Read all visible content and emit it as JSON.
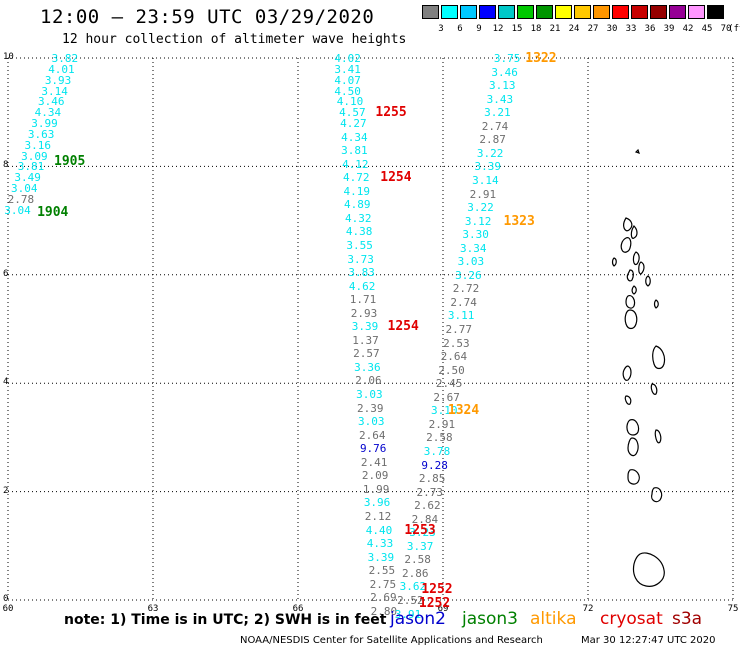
{
  "header": {
    "title": "12:00 – 23:59 UTC 03/29/2020",
    "subtitle": "12 hour collection of altimeter wave heights"
  },
  "legend": {
    "unit": "(ft)",
    "bins": [
      {
        "label": "3",
        "color": "#808080"
      },
      {
        "label": "6",
        "color": "#00ffff"
      },
      {
        "label": "9",
        "color": "#00c8ff"
      },
      {
        "label": "12",
        "color": "#0000ff"
      },
      {
        "label": "15",
        "color": "#00c8c8"
      },
      {
        "label": "18",
        "color": "#00c800"
      },
      {
        "label": "21",
        "color": "#009600"
      },
      {
        "label": "24",
        "color": "#ffff00"
      },
      {
        "label": "27",
        "color": "#ffc800"
      },
      {
        "label": "30",
        "color": "#ff9600"
      },
      {
        "label": "33",
        "color": "#ff0000"
      },
      {
        "label": "36",
        "color": "#c80000"
      },
      {
        "label": "39",
        "color": "#960000"
      },
      {
        "label": "42",
        "color": "#960096"
      },
      {
        "label": "45",
        "color": "#ff96ff"
      },
      {
        "label": "70",
        "color": "#000000"
      }
    ]
  },
  "axes": {
    "x_ticks": [
      {
        "label": "60",
        "lon": 60
      },
      {
        "label": "63",
        "lon": 63
      },
      {
        "label": "66",
        "lon": 66
      },
      {
        "label": "69",
        "lon": 69
      },
      {
        "label": "72",
        "lon": 72
      },
      {
        "label": "75",
        "lon": 75
      }
    ],
    "y_ticks": [
      {
        "label": "0",
        "lat": 0
      },
      {
        "label": "2",
        "lat": 2
      },
      {
        "label": "4",
        "lat": 4
      },
      {
        "label": "6",
        "lat": 6
      },
      {
        "label": "8",
        "lat": 8
      },
      {
        "label": "10",
        "lat": 10
      }
    ],
    "lon_range": [
      60,
      75
    ],
    "lat_range": [
      0,
      10
    ],
    "grid": true
  },
  "colors": {
    "gray": "#6e6e6e",
    "cyan": "#00e5ee",
    "blue": "#0000cd",
    "green": "#008000",
    "orange": "#ff9900",
    "red": "#e00000"
  },
  "observations": [
    {
      "v": "3.82",
      "c": "cyan",
      "lon": 61.15,
      "lat": 10.0
    },
    {
      "v": "4.01",
      "c": "cyan",
      "lon": 61.08,
      "lat": 9.8
    },
    {
      "v": "3.93",
      "c": "cyan",
      "lon": 61.01,
      "lat": 9.6
    },
    {
      "v": "3.14",
      "c": "cyan",
      "lon": 60.94,
      "lat": 9.4
    },
    {
      "v": "3.46",
      "c": "cyan",
      "lon": 60.87,
      "lat": 9.2
    },
    {
      "v": "4.34",
      "c": "cyan",
      "lon": 60.8,
      "lat": 9.0
    },
    {
      "v": "3.99",
      "c": "cyan",
      "lon": 60.73,
      "lat": 8.8
    },
    {
      "v": "3.63",
      "c": "cyan",
      "lon": 60.66,
      "lat": 8.6
    },
    {
      "v": "3.16",
      "c": "cyan",
      "lon": 60.59,
      "lat": 8.4
    },
    {
      "v": "3.09",
      "c": "cyan",
      "lon": 60.52,
      "lat": 8.2
    },
    {
      "v": "3.81",
      "c": "cyan",
      "lon": 60.45,
      "lat": 8.0
    },
    {
      "v": "3.49",
      "c": "cyan",
      "lon": 60.38,
      "lat": 7.8
    },
    {
      "v": "3.04",
      "c": "cyan",
      "lon": 60.31,
      "lat": 7.6
    },
    {
      "v": "2.78",
      "c": "gray",
      "lon": 60.24,
      "lat": 7.4
    },
    {
      "v": "3.04",
      "c": "cyan",
      "lon": 60.17,
      "lat": 7.2
    },
    {
      "v": "4.02",
      "c": "cyan",
      "lon": 67.0,
      "lat": 10.0
    },
    {
      "v": "3.41",
      "c": "cyan",
      "lon": 67.0,
      "lat": 9.8
    },
    {
      "v": "4.07",
      "c": "cyan",
      "lon": 67.0,
      "lat": 9.6
    },
    {
      "v": "4.50",
      "c": "cyan",
      "lon": 67.0,
      "lat": 9.4
    },
    {
      "v": "4.10",
      "c": "cyan",
      "lon": 67.05,
      "lat": 9.2
    },
    {
      "v": "4.57",
      "c": "cyan",
      "lon": 67.1,
      "lat": 9.0
    },
    {
      "v": "4.27",
      "c": "cyan",
      "lon": 67.12,
      "lat": 8.8
    },
    {
      "v": "4.34",
      "c": "cyan",
      "lon": 67.14,
      "lat": 8.55
    },
    {
      "v": "3.81",
      "c": "cyan",
      "lon": 67.14,
      "lat": 8.3
    },
    {
      "v": "4.12",
      "c": "cyan",
      "lon": 67.16,
      "lat": 8.05
    },
    {
      "v": "4.72",
      "c": "cyan",
      "lon": 67.18,
      "lat": 7.8
    },
    {
      "v": "4.19",
      "c": "cyan",
      "lon": 67.19,
      "lat": 7.55
    },
    {
      "v": "4.89",
      "c": "cyan",
      "lon": 67.2,
      "lat": 7.3
    },
    {
      "v": "4.32",
      "c": "cyan",
      "lon": 67.22,
      "lat": 7.05
    },
    {
      "v": "4.38",
      "c": "cyan",
      "lon": 67.24,
      "lat": 6.8
    },
    {
      "v": "3.55",
      "c": "cyan",
      "lon": 67.25,
      "lat": 6.55
    },
    {
      "v": "3.73",
      "c": "cyan",
      "lon": 67.27,
      "lat": 6.3
    },
    {
      "v": "3.83",
      "c": "cyan",
      "lon": 67.29,
      "lat": 6.05
    },
    {
      "v": "4.62",
      "c": "cyan",
      "lon": 67.3,
      "lat": 5.8
    },
    {
      "v": "1.71",
      "c": "gray",
      "lon": 67.32,
      "lat": 5.55
    },
    {
      "v": "2.93",
      "c": "gray",
      "lon": 67.34,
      "lat": 5.3
    },
    {
      "v": "3.39",
      "c": "cyan",
      "lon": 67.36,
      "lat": 5.05
    },
    {
      "v": "1.37",
      "c": "gray",
      "lon": 67.37,
      "lat": 4.8
    },
    {
      "v": "2.57",
      "c": "gray",
      "lon": 67.39,
      "lat": 4.55
    },
    {
      "v": "3.36",
      "c": "cyan",
      "lon": 67.41,
      "lat": 4.3
    },
    {
      "v": "2.06",
      "c": "gray",
      "lon": 67.43,
      "lat": 4.05
    },
    {
      "v": "3.03",
      "c": "cyan",
      "lon": 67.45,
      "lat": 3.8
    },
    {
      "v": "2.39",
      "c": "gray",
      "lon": 67.47,
      "lat": 3.55
    },
    {
      "v": "3.03",
      "c": "cyan",
      "lon": 67.49,
      "lat": 3.3
    },
    {
      "v": "2.64",
      "c": "gray",
      "lon": 67.51,
      "lat": 3.05
    },
    {
      "v": "9.76",
      "c": "blue",
      "lon": 67.53,
      "lat": 2.8
    },
    {
      "v": "2.41",
      "c": "gray",
      "lon": 67.55,
      "lat": 2.55
    },
    {
      "v": "2.09",
      "c": "gray",
      "lon": 67.57,
      "lat": 2.3
    },
    {
      "v": "1.99",
      "c": "gray",
      "lon": 67.59,
      "lat": 2.05
    },
    {
      "v": "3.96",
      "c": "cyan",
      "lon": 67.61,
      "lat": 1.8
    },
    {
      "v": "2.12",
      "c": "gray",
      "lon": 67.63,
      "lat": 1.55
    },
    {
      "v": "4.40",
      "c": "cyan",
      "lon": 67.65,
      "lat": 1.3
    },
    {
      "v": "4.33",
      "c": "cyan",
      "lon": 67.67,
      "lat": 1.05
    },
    {
      "v": "3.39",
      "c": "cyan",
      "lon": 67.69,
      "lat": 0.8
    },
    {
      "v": "2.55",
      "c": "gray",
      "lon": 67.71,
      "lat": 0.55
    },
    {
      "v": "2.75",
      "c": "gray",
      "lon": 67.73,
      "lat": 0.3
    },
    {
      "v": "2.69",
      "c": "gray",
      "lon": 67.74,
      "lat": 0.05
    },
    {
      "v": "2.80",
      "c": "gray",
      "lon": 67.75,
      "lat": -0.2
    },
    {
      "v": "3.75",
      "c": "cyan",
      "lon": 70.3,
      "lat": 10.0
    },
    {
      "v": "3.46",
      "c": "cyan",
      "lon": 70.25,
      "lat": 9.75
    },
    {
      "v": "3.13",
      "c": "cyan",
      "lon": 70.2,
      "lat": 9.5
    },
    {
      "v": "3.43",
      "c": "cyan",
      "lon": 70.15,
      "lat": 9.25
    },
    {
      "v": "3.21",
      "c": "cyan",
      "lon": 70.1,
      "lat": 9.0
    },
    {
      "v": "2.74",
      "c": "gray",
      "lon": 70.05,
      "lat": 8.75
    },
    {
      "v": "2.87",
      "c": "gray",
      "lon": 70.0,
      "lat": 8.5
    },
    {
      "v": "3.22",
      "c": "cyan",
      "lon": 69.95,
      "lat": 8.25
    },
    {
      "v": "3.39",
      "c": "cyan",
      "lon": 69.9,
      "lat": 8.0
    },
    {
      "v": "3.14",
      "c": "cyan",
      "lon": 69.85,
      "lat": 7.75
    },
    {
      "v": "2.91",
      "c": "gray",
      "lon": 69.8,
      "lat": 7.5
    },
    {
      "v": "3.22",
      "c": "cyan",
      "lon": 69.75,
      "lat": 7.25
    },
    {
      "v": "3.12",
      "c": "cyan",
      "lon": 69.7,
      "lat": 7.0
    },
    {
      "v": "3.30",
      "c": "cyan",
      "lon": 69.65,
      "lat": 6.75
    },
    {
      "v": "3.34",
      "c": "cyan",
      "lon": 69.6,
      "lat": 6.5
    },
    {
      "v": "3.03",
      "c": "cyan",
      "lon": 69.55,
      "lat": 6.25
    },
    {
      "v": "3.26",
      "c": "cyan",
      "lon": 69.5,
      "lat": 6.0
    },
    {
      "v": "2.72",
      "c": "gray",
      "lon": 69.45,
      "lat": 5.75
    },
    {
      "v": "2.74",
      "c": "gray",
      "lon": 69.4,
      "lat": 5.5
    },
    {
      "v": "3.11",
      "c": "cyan",
      "lon": 69.35,
      "lat": 5.25
    },
    {
      "v": "2.77",
      "c": "gray",
      "lon": 69.3,
      "lat": 5.0
    },
    {
      "v": "2.53",
      "c": "gray",
      "lon": 69.25,
      "lat": 4.75
    },
    {
      "v": "2.64",
      "c": "gray",
      "lon": 69.2,
      "lat": 4.5
    },
    {
      "v": "2.50",
      "c": "gray",
      "lon": 69.15,
      "lat": 4.25
    },
    {
      "v": "2.45",
      "c": "gray",
      "lon": 69.1,
      "lat": 4.0
    },
    {
      "v": "2.67",
      "c": "gray",
      "lon": 69.05,
      "lat": 3.75
    },
    {
      "v": "3.10",
      "c": "cyan",
      "lon": 69.0,
      "lat": 3.5
    },
    {
      "v": "2.91",
      "c": "gray",
      "lon": 68.95,
      "lat": 3.25
    },
    {
      "v": "2.58",
      "c": "gray",
      "lon": 68.9,
      "lat": 3.0
    },
    {
      "v": "3.78",
      "c": "cyan",
      "lon": 68.85,
      "lat": 2.75
    },
    {
      "v": "9.28",
      "c": "blue",
      "lon": 68.8,
      "lat": 2.5
    },
    {
      "v": "2.85",
      "c": "gray",
      "lon": 68.75,
      "lat": 2.25
    },
    {
      "v": "2.73",
      "c": "gray",
      "lon": 68.7,
      "lat": 2.0
    },
    {
      "v": "2.62",
      "c": "gray",
      "lon": 68.65,
      "lat": 1.75
    },
    {
      "v": "2.84",
      "c": "gray",
      "lon": 68.6,
      "lat": 1.5
    },
    {
      "v": "3.23",
      "c": "cyan",
      "lon": 68.55,
      "lat": 1.25
    },
    {
      "v": "3.37",
      "c": "cyan",
      "lon": 68.5,
      "lat": 1.0
    },
    {
      "v": "2.58",
      "c": "gray",
      "lon": 68.45,
      "lat": 0.75
    },
    {
      "v": "2.86",
      "c": "gray",
      "lon": 68.4,
      "lat": 0.5
    },
    {
      "v": "3.62",
      "c": "cyan",
      "lon": 68.35,
      "lat": 0.25
    },
    {
      "v": "2.52",
      "c": "gray",
      "lon": 68.3,
      "lat": 0.0
    },
    {
      "v": "3.91",
      "c": "cyan",
      "lon": 68.25,
      "lat": -0.25
    }
  ],
  "time_labels": [
    {
      "t": "1905",
      "c": "green",
      "lon": 61.2,
      "lat": 8.1
    },
    {
      "t": "1904",
      "c": "green",
      "lon": 60.85,
      "lat": 7.15
    },
    {
      "t": "1255",
      "c": "red",
      "lon": 67.85,
      "lat": 9.0
    },
    {
      "t": "1254",
      "c": "red",
      "lon": 67.95,
      "lat": 7.8
    },
    {
      "t": "1254",
      "c": "red",
      "lon": 68.1,
      "lat": 5.05
    },
    {
      "t": "1253",
      "c": "red",
      "lon": 68.45,
      "lat": 1.3
    },
    {
      "t": "1252",
      "c": "red",
      "lon": 68.8,
      "lat": 0.2
    },
    {
      "t": "1252",
      "c": "red",
      "lon": 68.75,
      "lat": -0.05
    },
    {
      "t": "1322",
      "c": "orange",
      "lon": 70.95,
      "lat": 10.0
    },
    {
      "t": "1323",
      "c": "orange",
      "lon": 70.5,
      "lat": 7.0
    },
    {
      "t": "1324",
      "c": "orange",
      "lon": 69.35,
      "lat": 3.5
    }
  ],
  "bottom": {
    "note": "note: 1) Time is in UTC; 2) SWH is in feet",
    "satellites": [
      {
        "name": "jason2",
        "color": "#0000cd"
      },
      {
        "name": "jason3",
        "color": "#008000"
      },
      {
        "name": "altika",
        "color": "#ff9900"
      },
      {
        "name": "cryosat",
        "color": "#e00000"
      },
      {
        "name": "s3a",
        "color": "#a00000"
      }
    ],
    "footer": "NOAA/NESDIS Center for Satellite Applications and Research",
    "timestamp": "Mar 30 12:27:47 UTC 2020"
  }
}
